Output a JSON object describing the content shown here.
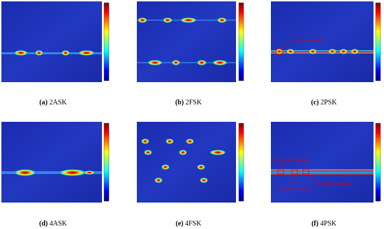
{
  "panels": [
    {
      "label": "(a)",
      "caption": "2ASK"
    },
    {
      "label": "(b)",
      "caption": "2FSK"
    },
    {
      "label": "(c)",
      "caption": "2PSK",
      "annotations": [
        "π phase mutation"
      ]
    },
    {
      "label": "(d)",
      "caption": "4ASK"
    },
    {
      "label": "(e)",
      "caption": "4FSK"
    },
    {
      "label": "(f)",
      "caption": "4PSK",
      "annotations": [
        "π/2 phase mutation",
        "π phase mutation",
        "π/2 phase mutation"
      ]
    }
  ]
}
